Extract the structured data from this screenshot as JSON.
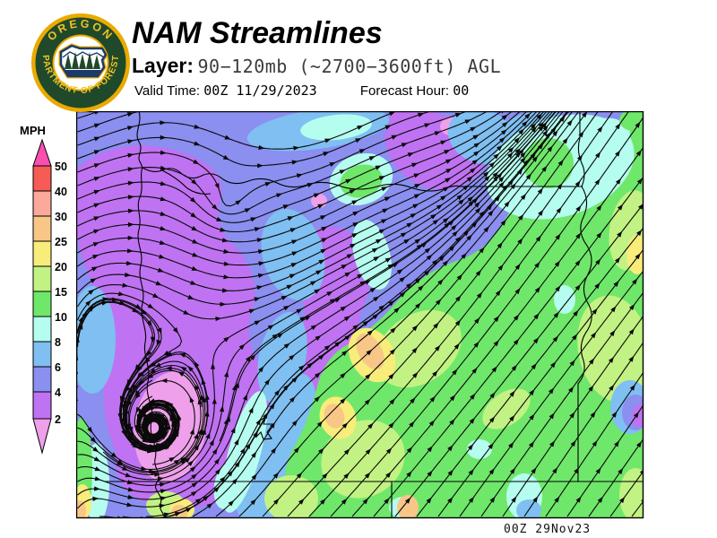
{
  "header": {
    "title": "NAM Streamlines",
    "layer_label": "Layer:",
    "layer_value": "90−120mb (~2700−3600ft) AGL",
    "valid_time_label": "Valid Time:",
    "valid_time_value": "00Z 11/29/2023",
    "forecast_hour_label": "Forecast Hour:",
    "forecast_hour_value": "00"
  },
  "logo": {
    "ring_text_top": "OREGON",
    "ring_text_bottom": "DEPARTMENT OF FORESTRY"
  },
  "colorbar": {
    "unit": "MPH",
    "ticks": [
      "50",
      "40",
      "30",
      "25",
      "20",
      "15",
      "10",
      "8",
      "6",
      "4",
      "2"
    ]
  },
  "map": {
    "timestamp": "00Z 29Nov23"
  },
  "palette": {
    "over_50": "#FA4FB0",
    "mph_40_50": "#F75B55",
    "mph_30_40": "#FAA99A",
    "mph_25_30": "#F8C687",
    "mph_20_25": "#F8EC7A",
    "mph_15_20": "#C2F283",
    "mph_10_15": "#6FE76A",
    "mph_8_10": "#B5FDEF",
    "mph_6_8": "#7FBFF2",
    "mph_4_6": "#8A8FF0",
    "mph_2_4": "#BF72F2",
    "under_2": "#EFA0EA",
    "seal_green": "#20492B",
    "seal_gold": "#EAAA00",
    "seal_gold_text": "#EFC225",
    "seal_navy": "#1B3A6B"
  }
}
